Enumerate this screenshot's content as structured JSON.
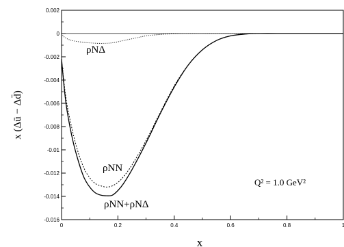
{
  "chart_data": {
    "type": "line",
    "xlabel": "x",
    "ylabel": "x (Δū − Δd̄)",
    "xlim": [
      0,
      1
    ],
    "ylim": [
      -0.016,
      0.002
    ],
    "grid": false,
    "x_ticks": [
      "0",
      "0.2",
      "0.4",
      "0.6",
      "0.8",
      "1"
    ],
    "y_ticks": [
      "0.002",
      "0",
      "-0.002",
      "-0.004",
      "-0.006",
      "-0.008",
      "-0.01",
      "-0.012",
      "-0.014",
      "-0.016"
    ],
    "annotation": "Q² = 1.0 GeV²",
    "series": [
      {
        "name": "ρNΔ",
        "style": "dotted",
        "points": [
          [
            0,
            0
          ],
          [
            0.01,
            -0.0003
          ],
          [
            0.03,
            -0.00055
          ],
          [
            0.06,
            -0.0007
          ],
          [
            0.1,
            -0.0008
          ],
          [
            0.14,
            -0.00085
          ],
          [
            0.18,
            -0.0008
          ],
          [
            0.22,
            -0.0006
          ],
          [
            0.26,
            -0.0004
          ],
          [
            0.3,
            -0.0002
          ],
          [
            0.35,
            -8e-05
          ],
          [
            0.4,
            -2e-05
          ],
          [
            0.45,
            0
          ],
          [
            0.5,
            0
          ],
          [
            0.6,
            0
          ],
          [
            0.7,
            0
          ],
          [
            0.8,
            0
          ],
          [
            0.9,
            0
          ],
          [
            1.0,
            0
          ]
        ]
      },
      {
        "name": "ρNN",
        "style": "dashed",
        "points": [
          [
            0,
            -0.0022
          ],
          [
            0.01,
            -0.0045
          ],
          [
            0.02,
            -0.0062
          ],
          [
            0.04,
            -0.0085
          ],
          [
            0.06,
            -0.0103
          ],
          [
            0.08,
            -0.0116
          ],
          [
            0.1,
            -0.0124
          ],
          [
            0.12,
            -0.0129
          ],
          [
            0.14,
            -0.0131
          ],
          [
            0.16,
            -0.0132
          ],
          [
            0.18,
            -0.0131
          ],
          [
            0.2,
            -0.0128
          ],
          [
            0.22,
            -0.0123
          ],
          [
            0.25,
            -0.0113
          ],
          [
            0.3,
            -0.0092
          ],
          [
            0.35,
            -0.0068
          ],
          [
            0.4,
            -0.0045
          ],
          [
            0.45,
            -0.0027
          ],
          [
            0.5,
            -0.0014
          ],
          [
            0.55,
            -0.0006
          ],
          [
            0.6,
            -0.0002
          ],
          [
            0.65,
            -5e-05
          ],
          [
            0.7,
            0
          ],
          [
            0.8,
            0
          ],
          [
            0.9,
            0
          ],
          [
            1.0,
            0
          ]
        ]
      },
      {
        "name": "ρNN+ρNΔ",
        "style": "solid",
        "points": [
          [
            0,
            -0.0022
          ],
          [
            0.01,
            -0.0048
          ],
          [
            0.02,
            -0.0067
          ],
          [
            0.04,
            -0.0092
          ],
          [
            0.06,
            -0.011
          ],
          [
            0.08,
            -0.0124
          ],
          [
            0.1,
            -0.0132
          ],
          [
            0.12,
            -0.0137
          ],
          [
            0.14,
            -0.0139
          ],
          [
            0.16,
            -0.01395
          ],
          [
            0.18,
            -0.0139
          ],
          [
            0.2,
            -0.0135
          ],
          [
            0.22,
            -0.0129
          ],
          [
            0.25,
            -0.0117
          ],
          [
            0.3,
            -0.0094
          ],
          [
            0.35,
            -0.0069
          ],
          [
            0.4,
            -0.0046
          ],
          [
            0.45,
            -0.0027
          ],
          [
            0.5,
            -0.0014
          ],
          [
            0.55,
            -0.0006
          ],
          [
            0.6,
            -0.0002
          ],
          [
            0.65,
            -5e-05
          ],
          [
            0.7,
            0
          ],
          [
            0.8,
            0
          ],
          [
            0.9,
            0
          ],
          [
            1.0,
            0
          ]
        ]
      }
    ]
  }
}
